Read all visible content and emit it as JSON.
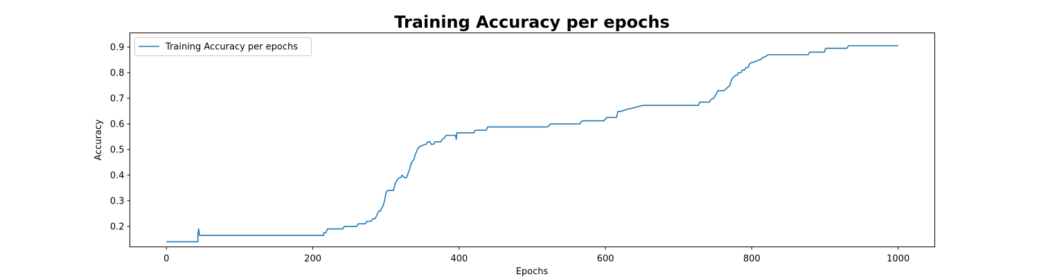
{
  "chart_data": {
    "type": "line",
    "title": "Training Accuracy per epochs",
    "xlabel": "Epochs",
    "ylabel": "Accuracy",
    "xlim": [
      -50,
      1050
    ],
    "ylim": [
      0.12,
      0.955
    ],
    "xticks": [
      0,
      200,
      400,
      600,
      800,
      1000
    ],
    "yticks": [
      0.2,
      0.3,
      0.4,
      0.5,
      0.6,
      0.7,
      0.8,
      0.9
    ],
    "grid": false,
    "legend_position": "upper-left",
    "series": [
      {
        "name": "Training Accuracy per epochs",
        "color": "#1f77b4",
        "x": [
          0,
          43,
          43,
          44,
          45,
          46,
          215,
          215,
          218,
          220,
          222,
          241,
          243,
          260,
          262,
          272,
          274,
          280,
          282,
          285,
          287,
          290,
          292,
          294,
          296,
          297,
          298,
          300,
          302,
          305,
          310,
          313,
          315,
          318,
          320,
          322,
          325,
          328,
          332,
          335,
          338,
          340,
          343,
          345,
          350,
          352,
          355,
          357,
          360,
          362,
          365,
          367,
          370,
          372,
          375,
          377,
          380,
          382,
          395,
          396,
          397,
          398,
          420,
          422,
          437,
          439,
          520,
          522,
          525,
          565,
          567,
          568,
          570,
          598,
          600,
          602,
          615,
          617,
          620,
          633,
          635,
          648,
          650,
          700,
          727,
          729,
          742,
          744,
          748,
          750,
          752,
          754,
          755,
          757,
          760,
          762,
          770,
          772,
          774,
          776,
          778,
          780,
          782,
          785,
          787,
          790,
          792,
          795,
          797,
          800,
          802,
          810,
          812,
          815,
          817,
          820,
          822,
          826,
          828,
          877,
          879,
          899,
          901,
          930,
          932,
          1000
        ],
        "y": [
          0.14,
          0.14,
          0.17,
          0.19,
          0.165,
          0.165,
          0.165,
          0.175,
          0.175,
          0.19,
          0.19,
          0.19,
          0.2,
          0.2,
          0.21,
          0.21,
          0.22,
          0.22,
          0.23,
          0.23,
          0.24,
          0.26,
          0.26,
          0.27,
          0.28,
          0.29,
          0.3,
          0.33,
          0.34,
          0.34,
          0.34,
          0.37,
          0.38,
          0.39,
          0.39,
          0.4,
          0.39,
          0.39,
          0.42,
          0.45,
          0.46,
          0.48,
          0.5,
          0.51,
          0.515,
          0.52,
          0.52,
          0.53,
          0.53,
          0.52,
          0.52,
          0.53,
          0.53,
          0.53,
          0.53,
          0.54,
          0.545,
          0.555,
          0.555,
          0.54,
          0.565,
          0.565,
          0.565,
          0.575,
          0.575,
          0.588,
          0.588,
          0.59,
          0.6,
          0.6,
          0.61,
          0.61,
          0.612,
          0.612,
          0.62,
          0.625,
          0.625,
          0.648,
          0.648,
          0.66,
          0.66,
          0.67,
          0.672,
          0.672,
          0.672,
          0.685,
          0.685,
          0.695,
          0.7,
          0.71,
          0.72,
          0.73,
          0.73,
          0.73,
          0.73,
          0.73,
          0.75,
          0.77,
          0.78,
          0.785,
          0.79,
          0.79,
          0.8,
          0.8,
          0.81,
          0.81,
          0.82,
          0.82,
          0.835,
          0.84,
          0.84,
          0.85,
          0.85,
          0.86,
          0.86,
          0.865,
          0.87,
          0.87,
          0.87,
          0.87,
          0.88,
          0.88,
          0.895,
          0.895,
          0.905,
          0.905
        ]
      }
    ]
  }
}
